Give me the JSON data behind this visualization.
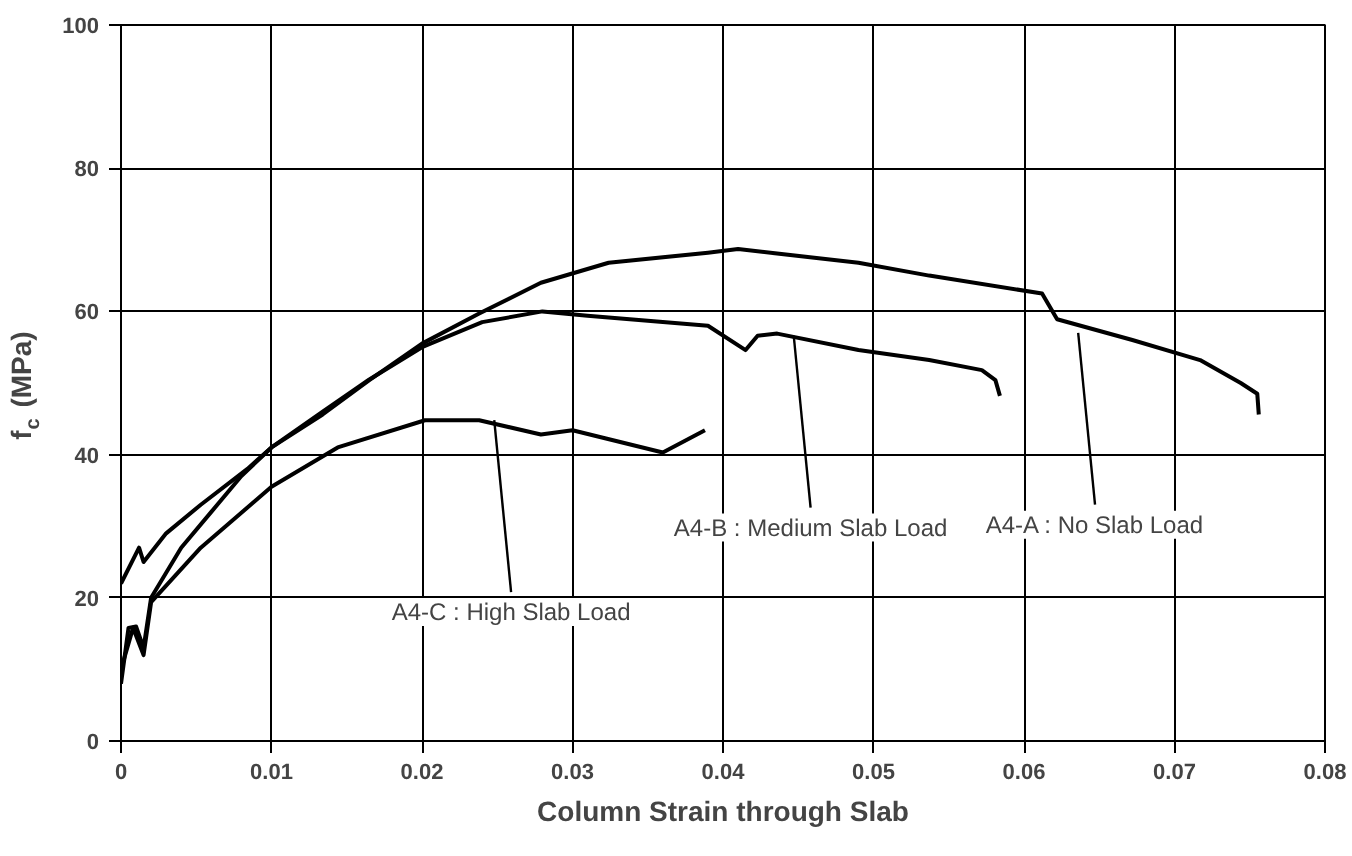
{
  "chart_data": {
    "type": "line",
    "xlabel": "Column Strain through Slab",
    "ylabel": "f$_{c}$ (MPa)",
    "xlim": [
      0,
      0.08
    ],
    "ylim": [
      0,
      100
    ],
    "xticks": [
      0,
      0.01,
      0.02,
      0.03,
      0.04,
      0.05,
      0.06,
      0.07,
      0.08
    ],
    "yticks": [
      0,
      20,
      40,
      60,
      80,
      100
    ],
    "grid": true,
    "marker": "none",
    "line_style": "solid",
    "series": [
      {
        "color": "#000000",
        "x": [
          0,
          0.0012,
          0.0015,
          0.003,
          0.0053,
          0.0084,
          0.01,
          0.0134,
          0.0165,
          0.02,
          0.0238,
          0.0279,
          0.0324,
          0.039,
          0.041,
          0.049,
          0.0537,
          0.0612,
          0.0622,
          0.0672,
          0.0717,
          0.0744,
          0.0755,
          0.0756
        ],
        "values": [
          22,
          27,
          25,
          29,
          33,
          38,
          41,
          45.6,
          50.4,
          55.5,
          59.7,
          64,
          66.8,
          68.2,
          68.7,
          66.8,
          65,
          62.5,
          58.9,
          56,
          53.2,
          50,
          48.5,
          45.6
        ]
      },
      {
        "color": "#000000",
        "x": [
          0,
          0.0005,
          0.001,
          0.0015,
          0.002,
          0.004,
          0.006,
          0.008,
          0.01,
          0.0134,
          0.0165,
          0.02,
          0.024,
          0.028,
          0.031,
          0.039,
          0.0415,
          0.0423,
          0.0436,
          0.049,
          0.0537,
          0.0572,
          0.0581,
          0.0584
        ],
        "values": [
          8,
          15.8,
          16,
          13,
          20,
          27,
          32,
          37,
          41,
          46,
          50.5,
          55,
          58.5,
          60,
          59.4,
          58,
          54.6,
          56.6,
          56.9,
          54.6,
          53.2,
          51.8,
          50.4,
          48.2
        ]
      },
      {
        "color": "#000000",
        "x": [
          0,
          0.0008,
          0.0015,
          0.002,
          0.0053,
          0.01,
          0.0144,
          0.0202,
          0.0238,
          0.0279,
          0.03,
          0.036,
          0.0388
        ],
        "values": [
          10,
          15.8,
          12,
          19.4,
          27,
          35.5,
          41,
          44.8,
          44.8,
          42.8,
          43.4,
          40.3,
          43.4
        ]
      }
    ],
    "annotations": [
      {
        "text": "A4-A : No Slab Load",
        "x": 0.0636,
        "y": 57
      },
      {
        "text": "A4-B : Medium Slab Load",
        "x": 0.0447,
        "y": 56.6
      },
      {
        "text": "A4-C : High Slab Load",
        "x": 0.0248,
        "y": 44.8
      }
    ]
  }
}
